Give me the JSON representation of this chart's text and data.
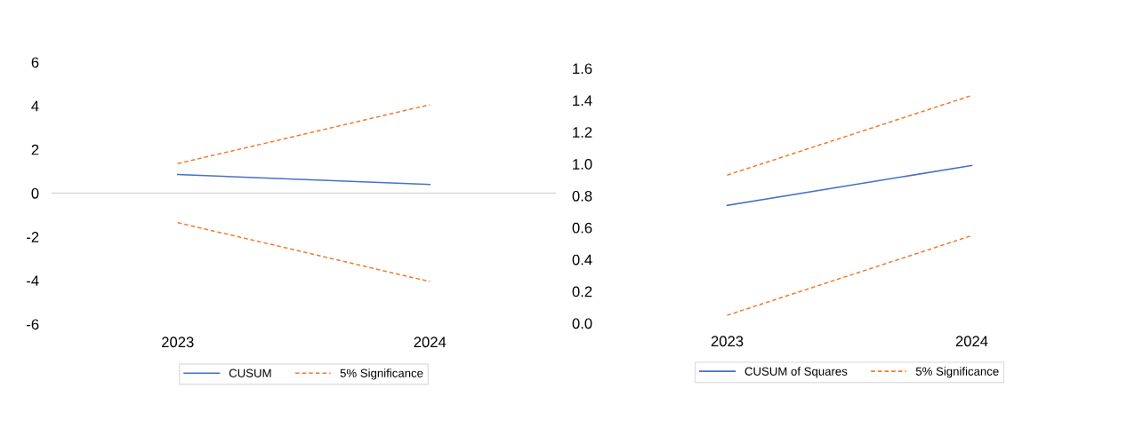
{
  "chart_data": [
    {
      "type": "line",
      "categories": [
        "2023",
        "2024"
      ],
      "series": [
        {
          "name": "CUSUM",
          "color": "#4472c4",
          "line_style": "solid",
          "values": [
            0.85,
            0.4
          ]
        },
        {
          "name": "5% Significance",
          "color": "#ed7d31",
          "line_style": "dashed",
          "values": [
            1.35,
            4.05
          ]
        },
        {
          "color": "#ed7d31",
          "line_style": "dashed",
          "values": [
            -1.35,
            -4.05
          ]
        }
      ],
      "ylim": [
        -6,
        6
      ],
      "yticks": [
        -6,
        -4,
        -2,
        0,
        2,
        4,
        6
      ],
      "ref_lines": [
        {
          "axis": "y",
          "value": 0,
          "color": "#d9d9d9"
        }
      ],
      "legend": "bottom"
    },
    {
      "type": "line",
      "categories": [
        "2023",
        "2024"
      ],
      "series": [
        {
          "name": "CUSUM of Squares",
          "color": "#4472c4",
          "line_style": "solid",
          "values": [
            0.74,
            0.99
          ]
        },
        {
          "name": "5% Significance",
          "color": "#ed7d31",
          "line_style": "dashed",
          "values": [
            0.93,
            1.43
          ]
        },
        {
          "color": "#ed7d31",
          "line_style": "dashed",
          "values": [
            0.05,
            0.55
          ]
        }
      ],
      "ylim": [
        0,
        1.6
      ],
      "yticks": [
        {
          "value": 0,
          "label": "0.0"
        },
        {
          "value": 0.2,
          "label": "0.2"
        },
        {
          "value": 0.4,
          "label": "0.4"
        },
        {
          "value": 0.6,
          "label": "0.6"
        },
        {
          "value": 0.8,
          "label": "0.8"
        },
        {
          "value": 1.0,
          "label": "1.0"
        },
        {
          "value": 1.2,
          "label": "1.2"
        },
        {
          "value": 1.4,
          "label": "1.4"
        },
        {
          "value": 1.6,
          "label": "1.6"
        }
      ],
      "legend": "bottom"
    }
  ]
}
